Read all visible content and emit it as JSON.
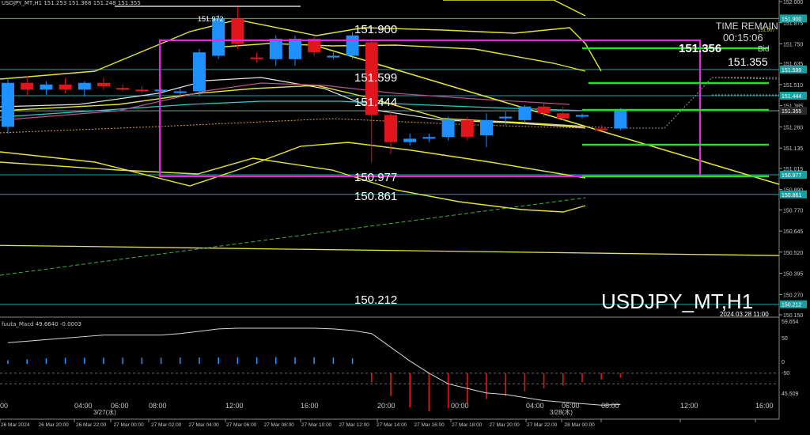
{
  "header": {
    "text": "USDJPY_MT,H1  151.253 151.368 151.248 151.355"
  },
  "symbol_watermark": "USDJPY_MT,H1",
  "timestamp": "2024.03.28 11:00",
  "time_remain": {
    "label": "TIME REMAIN",
    "value": "00:15:06"
  },
  "bid": {
    "label": "Bid",
    "value": "151.355",
    "big": "151.356"
  },
  "indicator": {
    "name": "fuuta_Macd 49.6640  -0.0003",
    "scale": [
      "59.654",
      "50",
      "0",
      "-50",
      "45.509"
    ]
  },
  "colors": {
    "background": "#000000",
    "bull": "#1e90ff",
    "bear": "#e0161c",
    "band": "#e6e62a",
    "box": "#e02be0",
    "support": "#22e022",
    "hline": "#20c0c0",
    "trend": "#e6e62a"
  },
  "chart_data": {
    "type": "candlestick",
    "symbol": "USDJPY_MT",
    "timeframe": "H1",
    "y_range": [
      150.15,
      152.0
    ],
    "price_ticks": [
      "152.000",
      "151.875",
      "151.750",
      "151.635",
      "151.510",
      "151.385",
      "151.260",
      "151.135",
      "151.015",
      "150.890",
      "150.770",
      "150.645",
      "150.520",
      "150.395",
      "150.270",
      "150.150"
    ],
    "price_tags": [
      "151.900",
      "151.599",
      "151.444",
      "151.355",
      "150.977",
      "150.861",
      "150.212"
    ],
    "level_labels": [
      {
        "text": "151.972",
        "price": 151.972
      },
      {
        "text": "151.900",
        "price": 151.9
      },
      {
        "text": "151.599",
        "price": 151.599
      },
      {
        "text": "151.444",
        "price": 151.444
      },
      {
        "text": "150.977",
        "price": 150.977
      },
      {
        "text": "150.861",
        "price": 150.861
      },
      {
        "text": "150.212",
        "price": 150.212
      }
    ],
    "small_tags": [
      "151.907",
      "151.900"
    ],
    "x_ticks_top": [
      "00",
      "04:00",
      "06:00",
      "08:00",
      "12:00",
      "16:00",
      "20:00",
      "00:00",
      "04:00",
      "06:00",
      "08:00",
      "12:00",
      "16:00"
    ],
    "date_marks": [
      "3/27(水)",
      "3/28(木)"
    ],
    "x_ticks_bottom": [
      "26 Mar 2024",
      "26 Mar 20:00",
      "26 Mar 22:00",
      "27 Mar 00:00",
      "27 Mar 02:00",
      "27 Mar 04:00",
      "27 Mar 06:00",
      "27 Mar 08:00",
      "27 Mar 10:00",
      "27 Mar 12:00",
      "27 Mar 14:00",
      "27 Mar 16:00",
      "27 Mar 18:00",
      "27 Mar 20:00",
      "27 Mar 22:00",
      "28 Mar 00:00"
    ],
    "candles": [
      {
        "o": 151.26,
        "h": 151.55,
        "l": 151.22,
        "c": 151.52
      },
      {
        "o": 151.52,
        "h": 151.56,
        "l": 151.44,
        "c": 151.48
      },
      {
        "o": 151.48,
        "h": 151.53,
        "l": 151.45,
        "c": 151.51
      },
      {
        "o": 151.51,
        "h": 151.55,
        "l": 151.46,
        "c": 151.48
      },
      {
        "o": 151.48,
        "h": 151.53,
        "l": 151.44,
        "c": 151.52
      },
      {
        "o": 151.52,
        "h": 151.55,
        "l": 151.48,
        "c": 151.5
      },
      {
        "o": 151.49,
        "h": 151.51,
        "l": 151.47,
        "c": 151.48
      },
      {
        "o": 151.48,
        "h": 151.5,
        "l": 151.46,
        "c": 151.47
      },
      {
        "o": 151.47,
        "h": 151.49,
        "l": 151.46,
        "c": 151.48
      },
      {
        "o": 151.46,
        "h": 151.49,
        "l": 151.44,
        "c": 151.47
      },
      {
        "o": 151.47,
        "h": 151.72,
        "l": 151.44,
        "c": 151.7
      },
      {
        "o": 151.68,
        "h": 151.92,
        "l": 151.66,
        "c": 151.9
      },
      {
        "o": 151.9,
        "h": 151.97,
        "l": 151.72,
        "c": 151.75
      },
      {
        "o": 151.67,
        "h": 151.7,
        "l": 151.64,
        "c": 151.66
      },
      {
        "o": 151.66,
        "h": 151.8,
        "l": 151.62,
        "c": 151.78
      },
      {
        "o": 151.66,
        "h": 151.8,
        "l": 151.62,
        "c": 151.78
      },
      {
        "o": 151.78,
        "h": 151.8,
        "l": 151.68,
        "c": 151.7
      },
      {
        "o": 151.67,
        "h": 151.7,
        "l": 151.66,
        "c": 151.68
      },
      {
        "o": 151.68,
        "h": 151.82,
        "l": 151.66,
        "c": 151.8
      },
      {
        "o": 151.76,
        "h": 151.78,
        "l": 151.05,
        "c": 151.33
      },
      {
        "o": 151.33,
        "h": 151.35,
        "l": 151.1,
        "c": 151.17
      },
      {
        "o": 151.17,
        "h": 151.22,
        "l": 151.15,
        "c": 151.19
      },
      {
        "o": 151.19,
        "h": 151.22,
        "l": 151.17,
        "c": 151.2
      },
      {
        "o": 151.2,
        "h": 151.32,
        "l": 151.18,
        "c": 151.3
      },
      {
        "o": 151.3,
        "h": 151.32,
        "l": 151.18,
        "c": 151.2
      },
      {
        "o": 151.21,
        "h": 151.34,
        "l": 151.14,
        "c": 151.3
      },
      {
        "o": 151.31,
        "h": 151.35,
        "l": 151.27,
        "c": 151.32
      },
      {
        "o": 151.3,
        "h": 151.39,
        "l": 151.28,
        "c": 151.38
      },
      {
        "o": 151.38,
        "h": 151.4,
        "l": 151.32,
        "c": 151.34
      },
      {
        "o": 151.34,
        "h": 151.38,
        "l": 151.3,
        "c": 151.31
      },
      {
        "o": 151.32,
        "h": 151.34,
        "l": 151.31,
        "c": 151.33
      },
      {
        "o": 151.25,
        "h": 151.27,
        "l": 151.24,
        "c": 151.24
      },
      {
        "o": 151.25,
        "h": 151.37,
        "l": 151.24,
        "c": 151.36
      }
    ],
    "macd_main": [
      40,
      42,
      44,
      46,
      48,
      50,
      50,
      50,
      50,
      52,
      55,
      58,
      59,
      59,
      59,
      59,
      59,
      58,
      56,
      52,
      34,
      16,
      0,
      -14,
      -20,
      -26,
      -28,
      -32,
      -36,
      -38,
      -40,
      -42,
      -41
    ],
    "macd_hist": [
      20,
      25,
      30,
      33,
      33,
      33,
      33,
      33,
      33,
      34,
      34,
      35,
      36,
      36,
      36,
      36,
      36,
      34,
      30,
      -12,
      -30,
      -45,
      -50,
      -46,
      -40,
      -34,
      -30,
      -24,
      -20,
      -16,
      -12,
      -8,
      -6
    ]
  }
}
